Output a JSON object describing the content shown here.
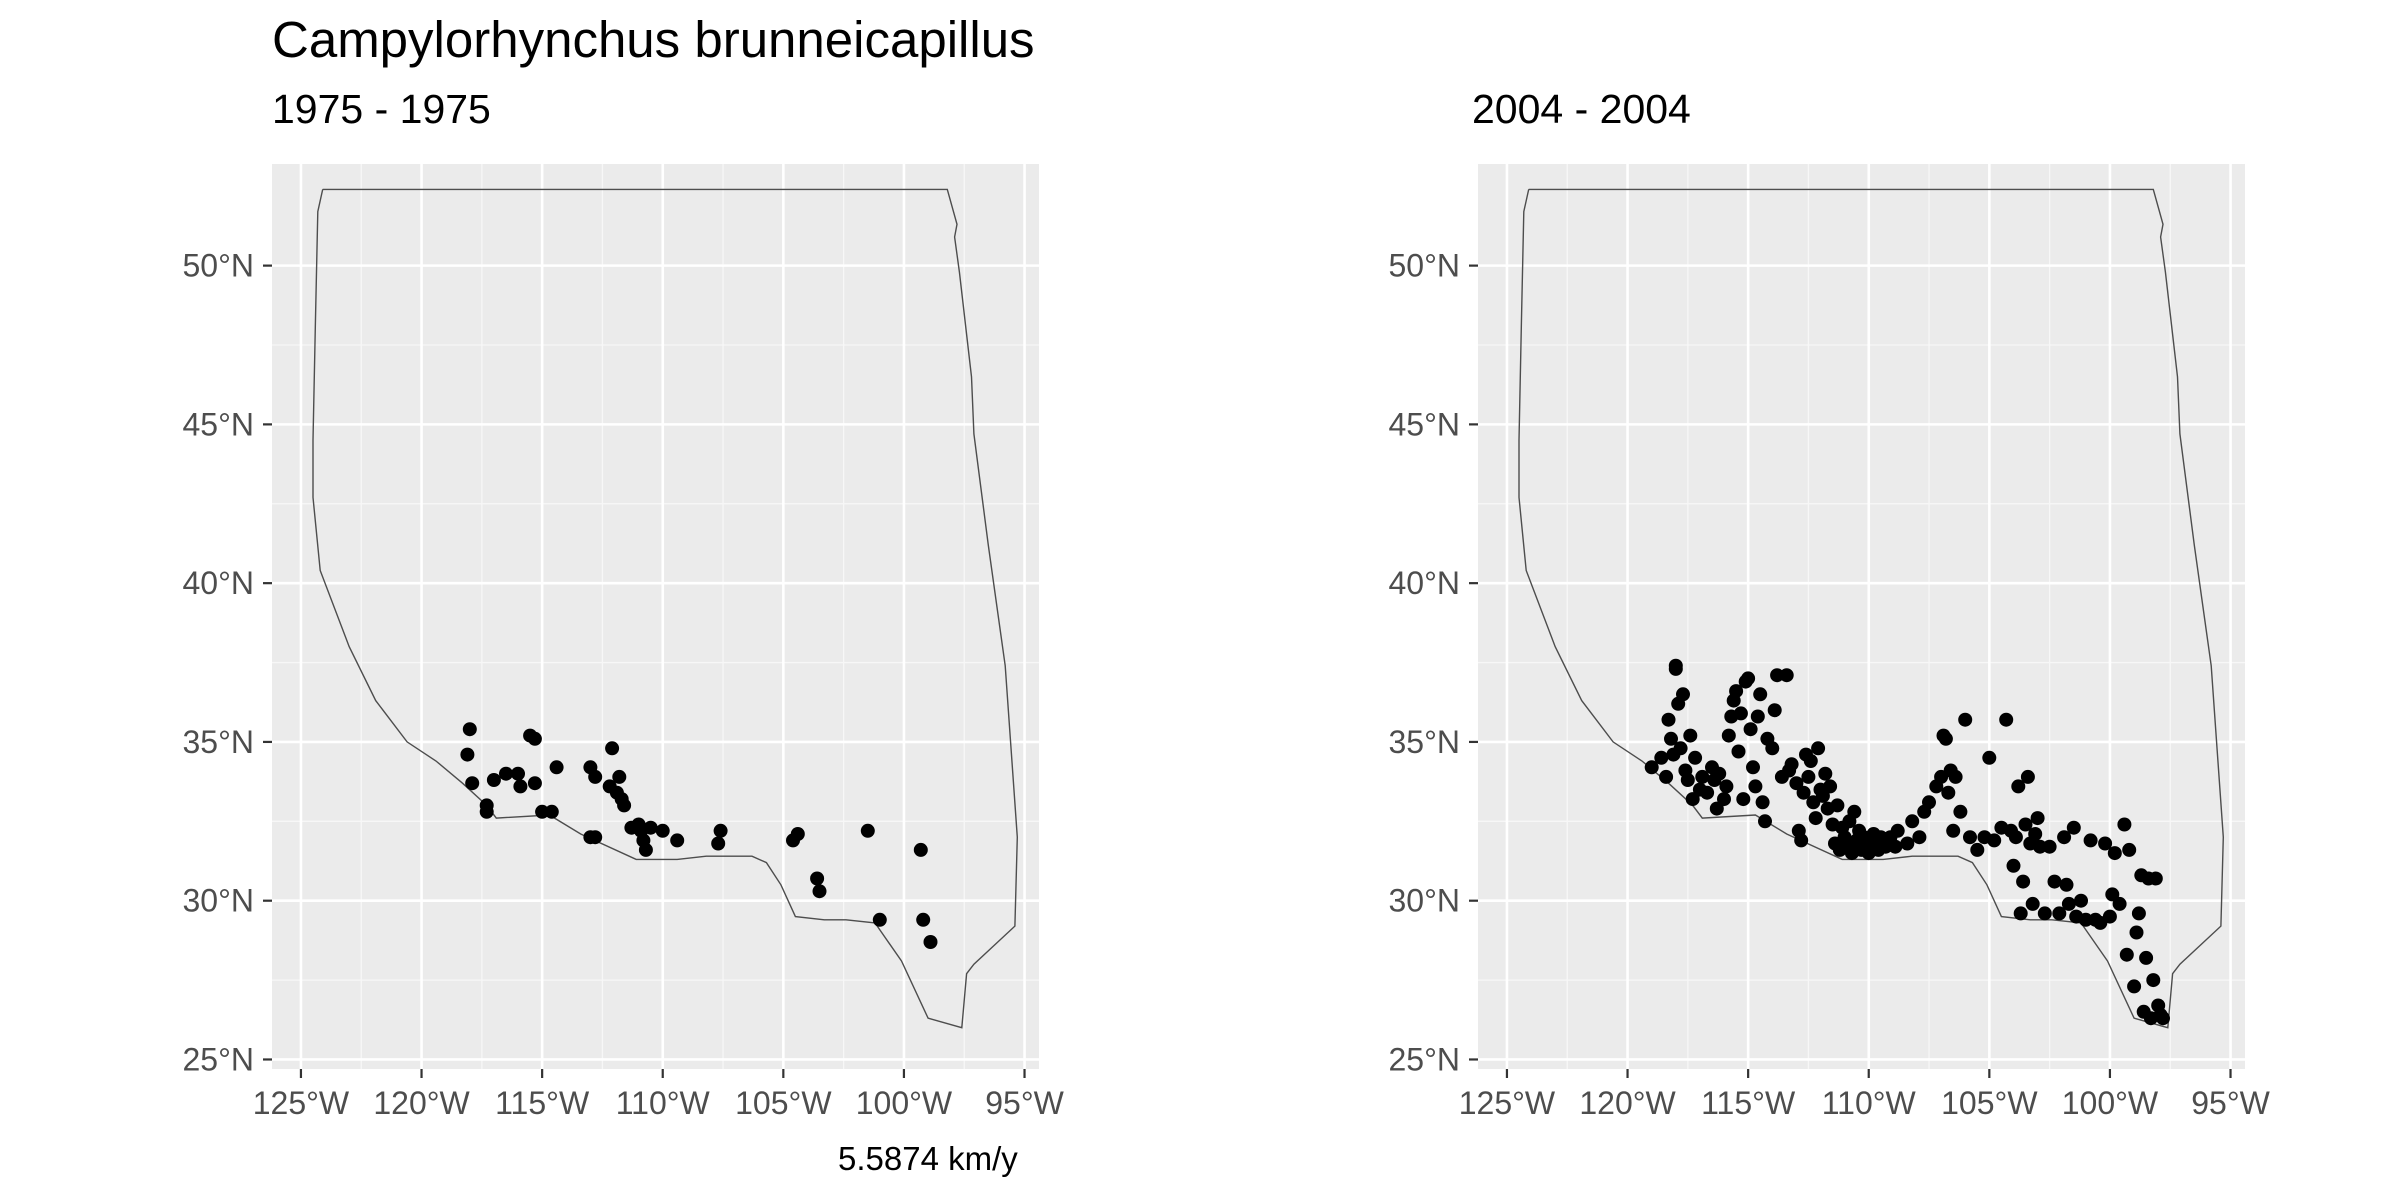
{
  "figure": {
    "title": "Campylorhynchus brunneicapillus",
    "caption": "5.5874 km/y"
  },
  "chart_data": [
    {
      "type": "scatter",
      "subtitle": "1975 - 1975",
      "xlim": [
        -126.2,
        -94.4
      ],
      "ylim": [
        24.7,
        53.2
      ],
      "x_ticks": [
        -125,
        -120,
        -115,
        -110,
        -105,
        -100,
        -95
      ],
      "x_tick_labels": [
        "125°W",
        "120°W",
        "115°W",
        "110°W",
        "105°W",
        "100°W",
        "95°W"
      ],
      "y_ticks": [
        25,
        30,
        35,
        40,
        45,
        50
      ],
      "y_tick_labels": [
        "25°N",
        "30°N",
        "35°N",
        "40°N",
        "45°N",
        "50°N"
      ],
      "grid": true,
      "region_outline": [
        [
          -124.1,
          52.4
        ],
        [
          -114,
          52.4
        ],
        [
          -104,
          52.4
        ],
        [
          -98.2,
          52.4
        ],
        [
          -97.8,
          51.3
        ],
        [
          -97.9,
          50.9
        ],
        [
          -97.7,
          49.8
        ],
        [
          -97.2,
          46.5
        ],
        [
          -97.1,
          44.7
        ],
        [
          -96.5,
          41.2
        ],
        [
          -95.8,
          37.4
        ],
        [
          -95.3,
          32.0
        ],
        [
          -95.4,
          29.2
        ],
        [
          -97.1,
          28.0
        ],
        [
          -97.4,
          27.7
        ],
        [
          -97.6,
          26.0
        ],
        [
          -99.0,
          26.3
        ],
        [
          -100.1,
          28.1
        ],
        [
          -101.2,
          29.3
        ],
        [
          -102.4,
          29.4
        ],
        [
          -103.3,
          29.4
        ],
        [
          -104.5,
          29.5
        ],
        [
          -105.1,
          30.5
        ],
        [
          -105.7,
          31.2
        ],
        [
          -106.3,
          31.4
        ],
        [
          -108.2,
          31.4
        ],
        [
          -109.4,
          31.3
        ],
        [
          -111.1,
          31.3
        ],
        [
          -113.4,
          32.1
        ],
        [
          -114.7,
          32.7
        ],
        [
          -116.9,
          32.6
        ],
        [
          -117.3,
          33.0
        ],
        [
          -118.3,
          33.7
        ],
        [
          -119.4,
          34.4
        ],
        [
          -120.6,
          35.0
        ],
        [
          -121.9,
          36.3
        ],
        [
          -123.0,
          38.0
        ],
        [
          -124.2,
          40.4
        ],
        [
          -124.5,
          42.7
        ],
        [
          -124.5,
          44.5
        ],
        [
          -124.4,
          48.2
        ],
        [
          -124.3,
          51.7
        ],
        [
          -124.1,
          52.4
        ]
      ],
      "points": [
        [
          -118.0,
          35.4
        ],
        [
          -118.1,
          34.6
        ],
        [
          -117.9,
          33.7
        ],
        [
          -117.3,
          33.0
        ],
        [
          -117.3,
          32.8
        ],
        [
          -117.0,
          33.8
        ],
        [
          -116.5,
          34.0
        ],
        [
          -116.0,
          34.0
        ],
        [
          -115.9,
          33.6
        ],
        [
          -115.5,
          35.2
        ],
        [
          -115.3,
          35.1
        ],
        [
          -115.3,
          33.7
        ],
        [
          -115.0,
          32.8
        ],
        [
          -114.6,
          32.8
        ],
        [
          -114.4,
          34.2
        ],
        [
          -113.0,
          34.2
        ],
        [
          -112.8,
          33.9
        ],
        [
          -113.0,
          32.0
        ],
        [
          -112.8,
          32.0
        ],
        [
          -112.1,
          34.8
        ],
        [
          -112.2,
          33.6
        ],
        [
          -111.9,
          33.4
        ],
        [
          -111.8,
          33.9
        ],
        [
          -111.7,
          33.2
        ],
        [
          -111.6,
          33.0
        ],
        [
          -111.3,
          32.3
        ],
        [
          -111.0,
          32.4
        ],
        [
          -110.9,
          32.2
        ],
        [
          -110.8,
          31.9
        ],
        [
          -110.7,
          31.6
        ],
        [
          -110.5,
          32.3
        ],
        [
          -110.0,
          32.2
        ],
        [
          -109.4,
          31.9
        ],
        [
          -107.6,
          32.2
        ],
        [
          -107.7,
          31.8
        ],
        [
          -104.6,
          31.9
        ],
        [
          -104.4,
          32.1
        ],
        [
          -103.6,
          30.7
        ],
        [
          -103.5,
          30.3
        ],
        [
          -101.5,
          32.2
        ],
        [
          -101.0,
          29.4
        ],
        [
          -99.3,
          31.6
        ],
        [
          -99.2,
          29.4
        ],
        [
          -98.9,
          28.7
        ]
      ]
    },
    {
      "type": "scatter",
      "subtitle": "2004 - 2004",
      "xlim": [
        -126.2,
        -94.4
      ],
      "ylim": [
        24.7,
        53.2
      ],
      "x_ticks": [
        -125,
        -120,
        -115,
        -110,
        -105,
        -100,
        -95
      ],
      "x_tick_labels": [
        "125°W",
        "120°W",
        "115°W",
        "110°W",
        "105°W",
        "100°W",
        "95°W"
      ],
      "y_ticks": [
        25,
        30,
        35,
        40,
        45,
        50
      ],
      "y_tick_labels": [
        "25°N",
        "30°N",
        "35°N",
        "40°N",
        "45°N",
        "50°N"
      ],
      "grid": true,
      "region_outline": [
        [
          -124.1,
          52.4
        ],
        [
          -114,
          52.4
        ],
        [
          -104,
          52.4
        ],
        [
          -98.2,
          52.4
        ],
        [
          -97.8,
          51.3
        ],
        [
          -97.9,
          50.9
        ],
        [
          -97.7,
          49.8
        ],
        [
          -97.2,
          46.5
        ],
        [
          -97.1,
          44.7
        ],
        [
          -96.5,
          41.2
        ],
        [
          -95.8,
          37.4
        ],
        [
          -95.3,
          32.0
        ],
        [
          -95.4,
          29.2
        ],
        [
          -97.1,
          28.0
        ],
        [
          -97.4,
          27.7
        ],
        [
          -97.6,
          26.0
        ],
        [
          -99.0,
          26.3
        ],
        [
          -100.1,
          28.1
        ],
        [
          -101.2,
          29.3
        ],
        [
          -102.4,
          29.4
        ],
        [
          -103.3,
          29.4
        ],
        [
          -104.5,
          29.5
        ],
        [
          -105.1,
          30.5
        ],
        [
          -105.7,
          31.2
        ],
        [
          -106.3,
          31.4
        ],
        [
          -108.2,
          31.4
        ],
        [
          -109.4,
          31.3
        ],
        [
          -111.1,
          31.3
        ],
        [
          -113.4,
          32.1
        ],
        [
          -114.7,
          32.7
        ],
        [
          -116.9,
          32.6
        ],
        [
          -117.3,
          33.0
        ],
        [
          -118.3,
          33.7
        ],
        [
          -119.4,
          34.4
        ],
        [
          -120.6,
          35.0
        ],
        [
          -121.9,
          36.3
        ],
        [
          -123.0,
          38.0
        ],
        [
          -124.2,
          40.4
        ],
        [
          -124.5,
          42.7
        ],
        [
          -124.5,
          44.5
        ],
        [
          -124.4,
          48.2
        ],
        [
          -124.3,
          51.7
        ],
        [
          -124.1,
          52.4
        ]
      ],
      "points": [
        [
          -119.0,
          34.2
        ],
        [
          -118.6,
          34.5
        ],
        [
          -118.4,
          33.9
        ],
        [
          -118.3,
          35.7
        ],
        [
          -118.2,
          35.1
        ],
        [
          -118.1,
          34.6
        ],
        [
          -118.0,
          37.3
        ],
        [
          -118.0,
          37.4
        ],
        [
          -117.9,
          36.2
        ],
        [
          -117.8,
          34.8
        ],
        [
          -117.7,
          36.5
        ],
        [
          -117.6,
          34.1
        ],
        [
          -117.5,
          33.8
        ],
        [
          -117.4,
          35.2
        ],
        [
          -117.3,
          33.2
        ],
        [
          -117.2,
          34.5
        ],
        [
          -117.0,
          33.5
        ],
        [
          -116.9,
          33.9
        ],
        [
          -116.7,
          33.4
        ],
        [
          -116.5,
          34.2
        ],
        [
          -116.4,
          33.8
        ],
        [
          -116.3,
          32.9
        ],
        [
          -116.2,
          34.0
        ],
        [
          -116.0,
          33.2
        ],
        [
          -115.9,
          33.6
        ],
        [
          -115.8,
          35.2
        ],
        [
          -115.7,
          35.8
        ],
        [
          -115.6,
          36.3
        ],
        [
          -115.5,
          36.6
        ],
        [
          -115.4,
          34.7
        ],
        [
          -115.3,
          35.9
        ],
        [
          -115.2,
          33.2
        ],
        [
          -115.1,
          36.9
        ],
        [
          -115.0,
          37.0
        ],
        [
          -114.9,
          35.4
        ],
        [
          -114.8,
          34.2
        ],
        [
          -114.7,
          33.6
        ],
        [
          -114.6,
          35.8
        ],
        [
          -114.5,
          36.5
        ],
        [
          -114.4,
          33.1
        ],
        [
          -114.3,
          32.5
        ],
        [
          -114.2,
          35.1
        ],
        [
          -114.0,
          34.8
        ],
        [
          -113.9,
          36.0
        ],
        [
          -113.8,
          37.1
        ],
        [
          -113.6,
          33.9
        ],
        [
          -113.4,
          37.1
        ],
        [
          -113.3,
          34.1
        ],
        [
          -113.2,
          34.3
        ],
        [
          -113.0,
          33.7
        ],
        [
          -112.9,
          32.2
        ],
        [
          -112.8,
          31.9
        ],
        [
          -112.7,
          33.4
        ],
        [
          -112.6,
          34.6
        ],
        [
          -112.5,
          33.9
        ],
        [
          -112.4,
          34.4
        ],
        [
          -112.3,
          33.1
        ],
        [
          -112.2,
          32.6
        ],
        [
          -112.1,
          34.8
        ],
        [
          -112.0,
          33.5
        ],
        [
          -111.9,
          33.3
        ],
        [
          -111.8,
          34.0
        ],
        [
          -111.7,
          32.9
        ],
        [
          -111.6,
          33.6
        ],
        [
          -111.5,
          32.4
        ],
        [
          -111.4,
          31.8
        ],
        [
          -111.3,
          33.0
        ],
        [
          -111.2,
          31.6
        ],
        [
          -111.1,
          32.3
        ],
        [
          -111.0,
          32.0
        ],
        [
          -110.9,
          31.7
        ],
        [
          -110.8,
          32.5
        ],
        [
          -110.7,
          31.5
        ],
        [
          -110.6,
          32.8
        ],
        [
          -110.5,
          31.9
        ],
        [
          -110.4,
          32.2
        ],
        [
          -110.3,
          31.6
        ],
        [
          -110.2,
          32.0
        ],
        [
          -110.0,
          31.5
        ],
        [
          -109.9,
          31.8
        ],
        [
          -109.8,
          32.1
        ],
        [
          -109.6,
          31.6
        ],
        [
          -109.5,
          32.0
        ],
        [
          -109.3,
          31.7
        ],
        [
          -109.1,
          32.0
        ],
        [
          -108.9,
          31.7
        ],
        [
          -108.8,
          32.2
        ],
        [
          -108.4,
          31.8
        ],
        [
          -108.2,
          32.5
        ],
        [
          -107.9,
          32.0
        ],
        [
          -107.7,
          32.8
        ],
        [
          -107.5,
          33.1
        ],
        [
          -107.2,
          33.6
        ],
        [
          -107.0,
          33.9
        ],
        [
          -106.9,
          35.2
        ],
        [
          -106.8,
          35.1
        ],
        [
          -106.7,
          33.4
        ],
        [
          -106.6,
          34.1
        ],
        [
          -106.5,
          32.2
        ],
        [
          -106.4,
          33.9
        ],
        [
          -106.2,
          32.8
        ],
        [
          -106.0,
          35.7
        ],
        [
          -105.8,
          32.0
        ],
        [
          -105.5,
          31.6
        ],
        [
          -105.2,
          32.0
        ],
        [
          -105.0,
          34.5
        ],
        [
          -104.8,
          31.9
        ],
        [
          -104.5,
          32.3
        ],
        [
          -104.3,
          35.7
        ],
        [
          -104.1,
          32.2
        ],
        [
          -104.0,
          31.1
        ],
        [
          -103.9,
          32.0
        ],
        [
          -103.8,
          33.6
        ],
        [
          -103.7,
          29.6
        ],
        [
          -103.6,
          30.6
        ],
        [
          -103.5,
          32.4
        ],
        [
          -103.4,
          33.9
        ],
        [
          -103.3,
          31.8
        ],
        [
          -103.2,
          29.9
        ],
        [
          -103.1,
          32.1
        ],
        [
          -103.0,
          32.6
        ],
        [
          -102.9,
          31.7
        ],
        [
          -102.7,
          29.6
        ],
        [
          -102.5,
          31.7
        ],
        [
          -102.3,
          30.6
        ],
        [
          -102.1,
          29.6
        ],
        [
          -101.9,
          32.0
        ],
        [
          -101.8,
          30.5
        ],
        [
          -101.7,
          29.9
        ],
        [
          -101.5,
          32.3
        ],
        [
          -101.4,
          29.5
        ],
        [
          -101.2,
          30.0
        ],
        [
          -101.0,
          29.4
        ],
        [
          -100.8,
          31.9
        ],
        [
          -100.6,
          29.4
        ],
        [
          -100.4,
          29.3
        ],
        [
          -100.2,
          31.8
        ],
        [
          -100.0,
          29.5
        ],
        [
          -99.9,
          30.2
        ],
        [
          -99.8,
          31.5
        ],
        [
          -99.6,
          29.9
        ],
        [
          -99.4,
          32.4
        ],
        [
          -99.3,
          28.3
        ],
        [
          -99.2,
          31.6
        ],
        [
          -99.0,
          27.3
        ],
        [
          -98.9,
          29.0
        ],
        [
          -98.8,
          29.6
        ],
        [
          -98.7,
          30.8
        ],
        [
          -98.6,
          26.5
        ],
        [
          -98.5,
          28.2
        ],
        [
          -98.4,
          30.7
        ],
        [
          -98.3,
          26.3
        ],
        [
          -98.2,
          27.5
        ],
        [
          -98.1,
          30.7
        ],
        [
          -98.0,
          26.7
        ],
        [
          -97.9,
          26.4
        ],
        [
          -97.8,
          26.3
        ]
      ]
    }
  ]
}
